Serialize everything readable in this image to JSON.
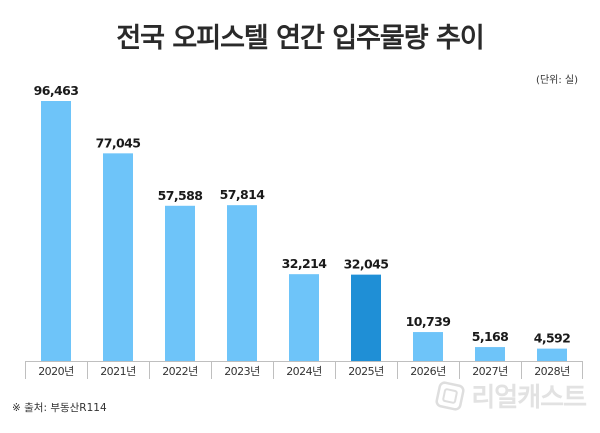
{
  "title": "전국 오피스텔 연간 입주물량 추이",
  "unit_label": "(단위: 실)",
  "source_text": "※ 출처: 부동산R114",
  "watermark_text": "리얼캐스트",
  "colors": {
    "bar": "#6ec4f9",
    "bar_highlight": "#1f8fd6",
    "baseline": "#bfbfbf",
    "value_text": "#1a1a1a",
    "tick_text": "#333333"
  },
  "chart_data": {
    "type": "bar",
    "title": "전국 오피스텔 연간 입주물량 추이",
    "categories": [
      "2020년",
      "2021년",
      "2022년",
      "2023년",
      "2024년",
      "2025년",
      "2026년",
      "2027년",
      "2028년"
    ],
    "values": [
      96463,
      77045,
      57588,
      57814,
      32214,
      32045,
      10739,
      5168,
      4592
    ],
    "value_labels": [
      "96,463",
      "77,045",
      "57,588",
      "57,814",
      "32,214",
      "32,045",
      "10,739",
      "5,168",
      "4,592"
    ],
    "highlight_index": 5,
    "ylim": [
      0,
      96463
    ],
    "grid": false,
    "legend": "none"
  }
}
